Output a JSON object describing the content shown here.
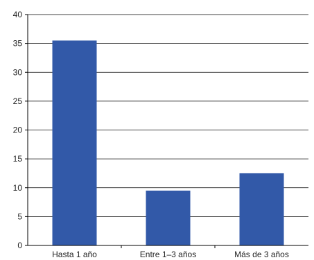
{
  "chart_data": {
    "type": "bar",
    "title": "",
    "xlabel": "",
    "ylabel": "",
    "categories": [
      "Hasta 1 año",
      "Entre 1–3 años",
      "Más de 3 años"
    ],
    "values": [
      35.5,
      9.5,
      12.5
    ],
    "ylim": [
      0,
      40
    ],
    "yticks": [
      0,
      5,
      10,
      15,
      20,
      25,
      30,
      35,
      40
    ],
    "grid": true,
    "legend": "none",
    "bar_color": "#3259a8"
  }
}
